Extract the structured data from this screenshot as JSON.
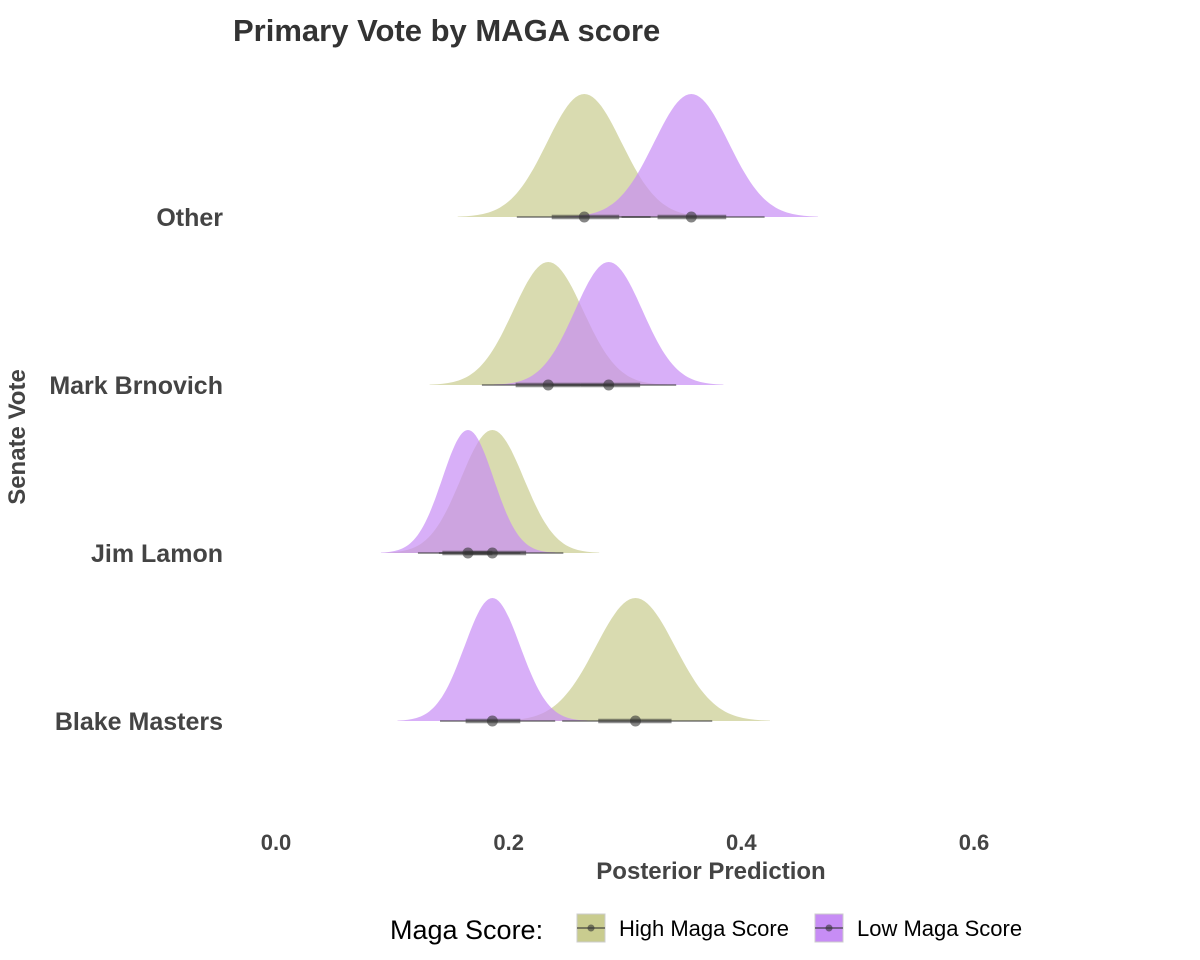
{
  "chart_data": {
    "type": "ridgeline",
    "title": "Primary Vote by MAGA score",
    "xlabel": "Posterior Prediction",
    "ylabel": "Senate Vote",
    "xlim": [
      -0.02,
      0.76
    ],
    "x_ticks": [
      0.0,
      0.2,
      0.4,
      0.6
    ],
    "x_tick_labels": [
      "0.0",
      "0.2",
      "0.4",
      "0.6"
    ],
    "grid": false,
    "categories": [
      "Other",
      "Mark Brnovich",
      "Jim Lamon",
      "Blake Masters"
    ],
    "legend": {
      "title": "Maga Score:",
      "position": "bottom",
      "entries": [
        "High Maga Score",
        "Low Maga Score"
      ]
    },
    "colors": {
      "High Maga Score": "#c9cc8f",
      "Low Maga Score": "#c78df5",
      "point_interval": "#333333"
    },
    "series": [
      {
        "name": "High Maga Score",
        "distributions": [
          {
            "category": "Other",
            "median": 0.265,
            "sd": 0.032,
            "interval_66": [
              0.237,
              0.295
            ],
            "interval_95": [
              0.207,
              0.322
            ]
          },
          {
            "category": "Mark Brnovich",
            "median": 0.234,
            "sd": 0.03,
            "interval_66": [
              0.206,
              0.262
            ],
            "interval_95": [
              0.177,
              0.29
            ]
          },
          {
            "category": "Jim Lamon",
            "median": 0.186,
            "sd": 0.027,
            "interval_66": [
              0.162,
              0.215
            ],
            "interval_95": [
              0.14,
              0.247
            ]
          },
          {
            "category": "Blake Masters",
            "median": 0.309,
            "sd": 0.034,
            "interval_66": [
              0.277,
              0.34
            ],
            "interval_95": [
              0.246,
              0.375
            ]
          }
        ]
      },
      {
        "name": "Low Maga Score",
        "distributions": [
          {
            "category": "Other",
            "median": 0.357,
            "sd": 0.032,
            "interval_66": [
              0.328,
              0.387
            ],
            "interval_95": [
              0.297,
              0.42
            ]
          },
          {
            "category": "Mark Brnovich",
            "median": 0.286,
            "sd": 0.029,
            "interval_66": [
              0.262,
              0.313
            ],
            "interval_95": [
              0.237,
              0.344
            ]
          },
          {
            "category": "Jim Lamon",
            "median": 0.165,
            "sd": 0.022,
            "interval_66": [
              0.143,
              0.186
            ],
            "interval_95": [
              0.122,
              0.21
            ]
          },
          {
            "category": "Blake Masters",
            "median": 0.186,
            "sd": 0.024,
            "interval_66": [
              0.163,
              0.21
            ],
            "interval_95": [
              0.141,
              0.24
            ]
          }
        ]
      }
    ]
  }
}
